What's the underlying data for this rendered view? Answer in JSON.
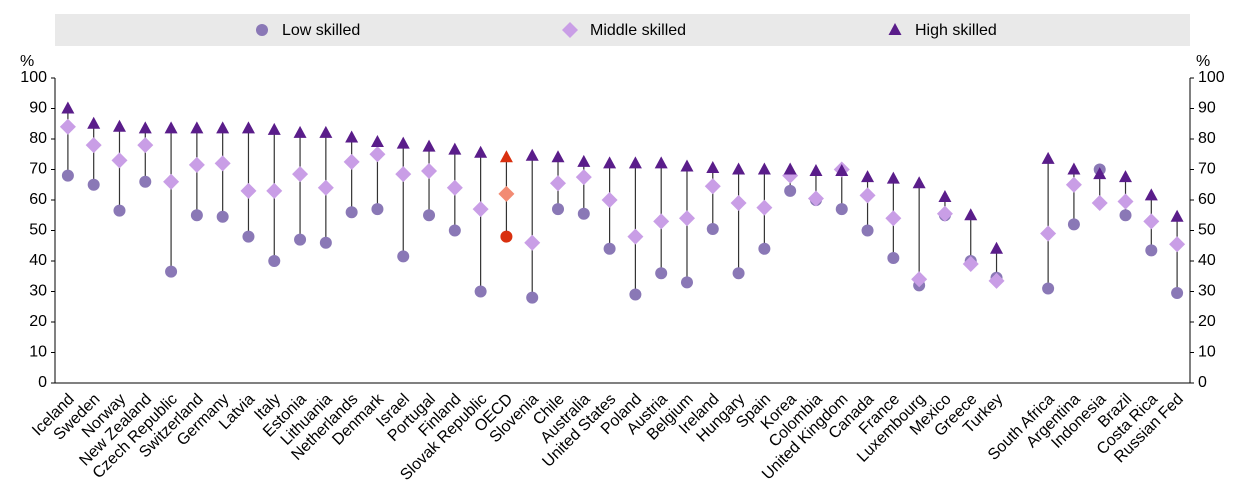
{
  "chart_data": {
    "type": "dot_range",
    "y_unit": "%",
    "categories": [
      "Iceland",
      "Sweden",
      "Norway",
      "New Zealand",
      "Czech Republic",
      "Switzerland",
      "Germany",
      "Latvia",
      "Italy",
      "Estonia",
      "Lithuania",
      "Netherlands",
      "Denmark",
      "Israel",
      "Portugal",
      "Finland",
      "Slovak Republic",
      "OECD",
      "Slovenia",
      "Chile",
      "Australia",
      "United States",
      "Poland",
      "Austria",
      "Belgium",
      "Ireland",
      "Hungary",
      "Spain",
      "Korea",
      "Colombia",
      "United Kingdom",
      "Canada",
      "France",
      "Luxembourg",
      "Mexico",
      "Greece",
      "Turkey",
      null,
      "South Africa",
      "Argentina",
      "Indonesia",
      "Brazil",
      "Costa Rica",
      "Russian Fed"
    ],
    "series": [
      {
        "name": "Low skilled",
        "color": "#8a78b6",
        "marker": "circle",
        "highlight_color": "#d9300f",
        "values": [
          68,
          65,
          56.5,
          66,
          36.5,
          55,
          54.5,
          48,
          40,
          47,
          46,
          56,
          57,
          41.5,
          55,
          50,
          30,
          48,
          28,
          57,
          55.5,
          44,
          29,
          36,
          33,
          50.5,
          36,
          44,
          63,
          60,
          57,
          50,
          41,
          32,
          55,
          40,
          34.5,
          null,
          31,
          52,
          70,
          55,
          43.5,
          29.5
        ]
      },
      {
        "name": "Middle skilled",
        "color": "#c99ee6",
        "marker": "diamond",
        "highlight_color": "#f28b73",
        "values": [
          84,
          78,
          73,
          78,
          66,
          71.5,
          72,
          63,
          63,
          68.5,
          64,
          72.5,
          75,
          68.5,
          69.5,
          64,
          57,
          62,
          46,
          65.5,
          67.5,
          60,
          48,
          53,
          54,
          64.5,
          59,
          57.5,
          68,
          60.5,
          70,
          61.5,
          54,
          34,
          55.5,
          39,
          33.5,
          null,
          49,
          65,
          59,
          59.5,
          53,
          45.5
        ]
      },
      {
        "name": "High skilled",
        "color": "#5a1d8a",
        "marker": "triangle",
        "highlight_color": "#d9300f",
        "values": [
          90,
          85,
          84,
          83.5,
          83.5,
          83.5,
          83.5,
          83.5,
          83,
          82,
          82,
          80.5,
          79,
          78.5,
          77.5,
          76.5,
          75.5,
          74,
          74.5,
          74,
          72.5,
          72,
          72,
          72,
          71,
          70.5,
          70,
          70,
          70,
          69.5,
          69.5,
          67.5,
          67,
          65.5,
          61,
          55,
          44,
          null,
          73.5,
          70,
          68.5,
          67.5,
          61.5,
          54.5
        ]
      }
    ],
    "highlight_index": 17,
    "ylim": [
      0,
      100
    ],
    "yticks": [
      0,
      10,
      20,
      30,
      40,
      50,
      60,
      70,
      80,
      90,
      100
    ],
    "grid": false
  }
}
